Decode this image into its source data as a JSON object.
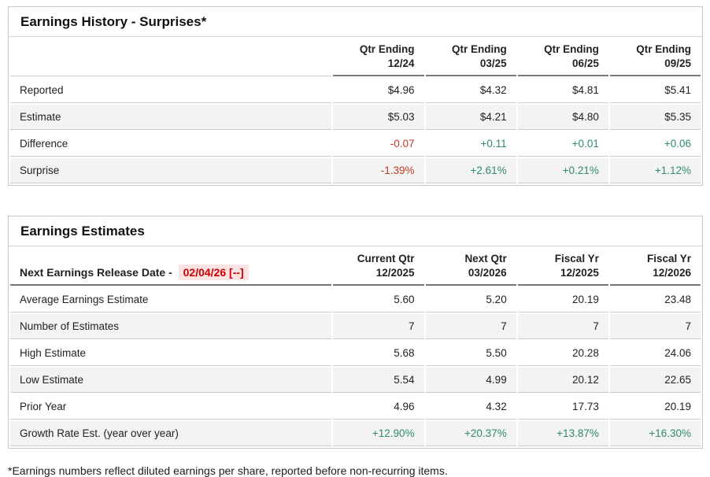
{
  "colors": {
    "negative": "#c0392b",
    "positive": "#2e8b6d",
    "date_red": "#cc0000",
    "date_bg": "#fbe3e3"
  },
  "earnings_history": {
    "title": "Earnings History - Surprises*",
    "columns": [
      {
        "top": "Qtr Ending",
        "bottom": "12/24"
      },
      {
        "top": "Qtr Ending",
        "bottom": "03/25"
      },
      {
        "top": "Qtr Ending",
        "bottom": "06/25"
      },
      {
        "top": "Qtr Ending",
        "bottom": "09/25"
      }
    ],
    "rows": [
      {
        "label": "Reported",
        "values": [
          "$4.96",
          "$4.32",
          "$4.81",
          "$5.41"
        ]
      },
      {
        "label": "Estimate",
        "values": [
          "$5.03",
          "$4.21",
          "$4.80",
          "$5.35"
        ]
      },
      {
        "label": "Difference",
        "values": [
          "-0.07",
          "+0.11",
          "+0.01",
          "+0.06"
        ]
      },
      {
        "label": "Surprise",
        "values": [
          "-1.39%",
          "+2.61%",
          "+0.21%",
          "+1.12%"
        ]
      }
    ]
  },
  "earnings_estimates": {
    "title": "Earnings Estimates",
    "release_label": "Next Earnings Release Date -",
    "release_date": "02/04/26 [--]",
    "columns": [
      {
        "top": "Current Qtr",
        "bottom": "12/2025"
      },
      {
        "top": "Next Qtr",
        "bottom": "03/2026"
      },
      {
        "top": "Fiscal Yr",
        "bottom": "12/2025"
      },
      {
        "top": "Fiscal Yr",
        "bottom": "12/2026"
      }
    ],
    "rows": [
      {
        "label": "Average Earnings Estimate",
        "values": [
          "5.60",
          "5.20",
          "20.19",
          "23.48"
        ]
      },
      {
        "label": "Number of Estimates",
        "values": [
          "7",
          "7",
          "7",
          "7"
        ]
      },
      {
        "label": "High Estimate",
        "values": [
          "5.68",
          "5.50",
          "20.28",
          "24.06"
        ]
      },
      {
        "label": "Low Estimate",
        "values": [
          "5.54",
          "4.99",
          "20.12",
          "22.65"
        ]
      },
      {
        "label": "Prior Year",
        "values": [
          "4.96",
          "4.32",
          "17.73",
          "20.19"
        ]
      },
      {
        "label": "Growth Rate Est. (year over year)",
        "values": [
          "+12.90%",
          "+20.37%",
          "+13.87%",
          "+16.30%"
        ]
      }
    ]
  },
  "footnote": "*Earnings numbers reflect diluted earnings per share, reported before non-recurring items."
}
